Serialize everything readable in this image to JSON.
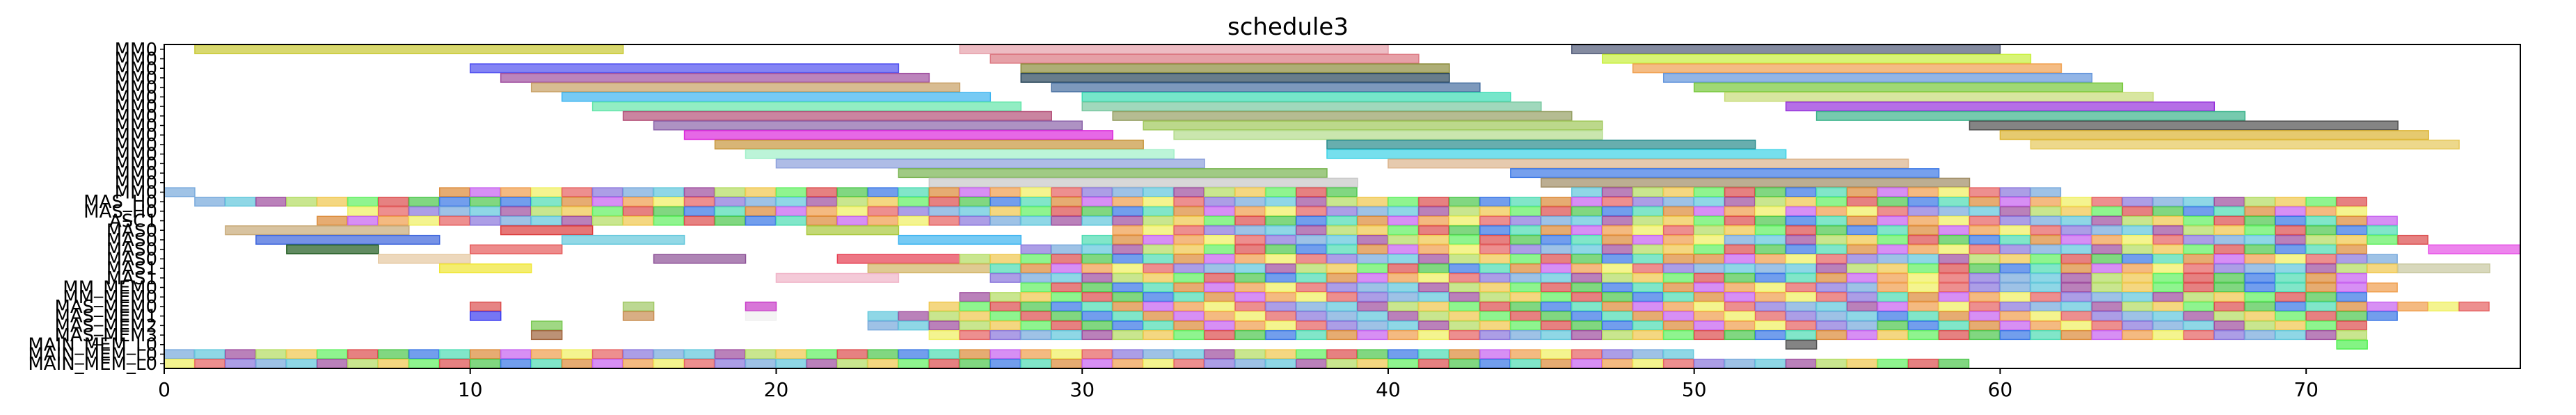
{
  "chart_data": {
    "type": "bar",
    "subtype": "gantt",
    "title": "schedule3",
    "xlabel": "",
    "ylabel": "",
    "xlim": [
      0,
      77
    ],
    "x_ticks": [
      0,
      10,
      20,
      30,
      40,
      50,
      60,
      70
    ],
    "grid": false,
    "legend": "none",
    "y_labels": [
      "MM0",
      "MM0",
      "MM0",
      "MM0",
      "MM0",
      "MM0",
      "MM0",
      "MM0",
      "MM0",
      "MM0",
      "MM0",
      "MM0",
      "MM0",
      "MM0",
      "MM0",
      "MM0",
      "MAS_H0",
      "MAS_H0",
      "ASC1",
      "MAS0",
      "MAS0",
      "MAS0",
      "MAS0",
      "MAS1",
      "MAS1",
      "MM_MEM0",
      "MM_MEM0",
      "MAS_MEM0",
      "MAS_MEM1",
      "MAS_MEM2",
      "MAS_MEM3",
      "MAIN_MEM_L0",
      "MAIN_MEM_L0",
      "MAIN_MEM_L0"
    ],
    "rows": [
      {
        "label": "MM0",
        "tasks": [
          {
            "start": 1,
            "end": 15,
            "color": "#c8c832"
          },
          {
            "start": 26,
            "end": 40,
            "color": "#e6a0aa"
          },
          {
            "start": 46,
            "end": 60,
            "color": "#505a78"
          }
        ]
      },
      {
        "label": "MM0",
        "tasks": [
          {
            "start": 27,
            "end": 41,
            "color": "#dc7882"
          },
          {
            "start": 47,
            "end": 61,
            "color": "#c8f03c"
          }
        ]
      },
      {
        "label": "MM0",
        "tasks": [
          {
            "start": 10,
            "end": 24,
            "color": "#5050f0"
          },
          {
            "start": 28,
            "end": 42,
            "color": "#8c8c3c"
          },
          {
            "start": 48,
            "end": 62,
            "color": "#f0a050"
          }
        ]
      },
      {
        "label": "MM0",
        "tasks": [
          {
            "start": 11,
            "end": 25,
            "color": "#a050a0"
          },
          {
            "start": 28,
            "end": 42,
            "color": "#28465a"
          },
          {
            "start": 49,
            "end": 63,
            "color": "#6496dc"
          }
        ]
      },
      {
        "label": "MM0",
        "tasks": [
          {
            "start": 12,
            "end": 26,
            "color": "#c8a064"
          },
          {
            "start": 29,
            "end": 43,
            "color": "#466ea0"
          },
          {
            "start": 50,
            "end": 64,
            "color": "#78c83c"
          }
        ]
      },
      {
        "label": "MM0",
        "tasks": [
          {
            "start": 13,
            "end": 27,
            "color": "#3cb4f0"
          },
          {
            "start": 30,
            "end": 44,
            "color": "#3cdcb4"
          },
          {
            "start": 51,
            "end": 65,
            "color": "#c8dc78"
          }
        ]
      },
      {
        "label": "MM0",
        "tasks": [
          {
            "start": 14,
            "end": 28,
            "color": "#64e6aa"
          },
          {
            "start": 30,
            "end": 45,
            "color": "#78c8a0"
          },
          {
            "start": 53,
            "end": 67,
            "color": "#9632dc"
          }
        ]
      },
      {
        "label": "MM0",
        "tasks": [
          {
            "start": 15,
            "end": 29,
            "color": "#b45078"
          },
          {
            "start": 31,
            "end": 46,
            "color": "#96a064"
          },
          {
            "start": 54,
            "end": 68,
            "color": "#3cb48c"
          }
        ]
      },
      {
        "label": "MM0",
        "tasks": [
          {
            "start": 16,
            "end": 30,
            "color": "#8c64aa"
          },
          {
            "start": 32,
            "end": 47,
            "color": "#a0c85a"
          },
          {
            "start": 59,
            "end": 73,
            "color": "#505050"
          }
        ]
      },
      {
        "label": "MM0",
        "tasks": [
          {
            "start": 17,
            "end": 31,
            "color": "#dc28dc"
          },
          {
            "start": 33,
            "end": 47,
            "color": "#b4dc8c"
          },
          {
            "start": 60,
            "end": 74,
            "color": "#dcb432"
          }
        ]
      },
      {
        "label": "MM0",
        "tasks": [
          {
            "start": 18,
            "end": 32,
            "color": "#c8963c"
          },
          {
            "start": 38,
            "end": 52,
            "color": "#288c8c"
          },
          {
            "start": 61,
            "end": 75,
            "color": "#e6c85a"
          }
        ]
      },
      {
        "label": "MM0",
        "tasks": [
          {
            "start": 19,
            "end": 33,
            "color": "#a0f0c8"
          },
          {
            "start": 38,
            "end": 53,
            "color": "#3cd2e6"
          }
        ]
      },
      {
        "label": "MM0",
        "tasks": [
          {
            "start": 20,
            "end": 34,
            "color": "#8ca0dc"
          },
          {
            "start": 40,
            "end": 57,
            "color": "#dcb48c"
          }
        ]
      },
      {
        "label": "MM0",
        "tasks": [
          {
            "start": 24,
            "end": 38,
            "color": "#78b450"
          },
          {
            "start": 44,
            "end": 58,
            "color": "#3c78e6"
          }
        ]
      },
      {
        "label": "MM0",
        "tasks": [
          {
            "start": 25,
            "end": 39,
            "color": "#c8c8c8"
          },
          {
            "start": 45,
            "end": 59,
            "color": "#a08c64"
          }
        ]
      },
      {
        "label": "MM0",
        "tasks": [
          {
            "start": 0,
            "end": 1,
            "color": "#78aadc"
          },
          {
            "start": 9,
            "end": 39,
            "color": "#dc5050",
            "pattern": true
          },
          {
            "start": 46,
            "end": 62,
            "color": "#8cb43c",
            "pattern": true
          }
        ]
      },
      {
        "label": "MAS_H0",
        "tasks": [
          {
            "start": 1,
            "end": 10,
            "color": "#c864f0",
            "pattern": true
          },
          {
            "start": 10,
            "end": 47,
            "color": "#f0f064",
            "pattern": true
          },
          {
            "start": 47,
            "end": 72,
            "color": "#64c8dc",
            "pattern": true
          }
        ]
      },
      {
        "label": "MAS_H0",
        "tasks": [
          {
            "start": 6,
            "end": 27,
            "color": "#64aaf0",
            "pattern": true
          },
          {
            "start": 27,
            "end": 53,
            "color": "#b4dc64",
            "pattern": true
          },
          {
            "start": 53,
            "end": 72,
            "color": "#f0f032",
            "pattern": true
          }
        ]
      },
      {
        "label": "ASC1",
        "tasks": [
          {
            "start": 5,
            "end": 30,
            "color": "#2850c8",
            "pattern": true
          },
          {
            "start": 30,
            "end": 53,
            "color": "#dc5064",
            "pattern": true
          },
          {
            "start": 53,
            "end": 73,
            "color": "#a050dc",
            "pattern": true
          }
        ]
      },
      {
        "label": "MAS0",
        "tasks": [
          {
            "start": 2,
            "end": 8,
            "color": "#c8aa78"
          },
          {
            "start": 11,
            "end": 14,
            "color": "#dc3c3c"
          },
          {
            "start": 21,
            "end": 24,
            "color": "#aac83c"
          },
          {
            "start": 31,
            "end": 50,
            "color": "#50aa50",
            "pattern": true
          },
          {
            "start": 50,
            "end": 73,
            "color": "#c864f0",
            "pattern": true
          }
        ]
      },
      {
        "label": "MAS0",
        "tasks": [
          {
            "start": 3,
            "end": 9,
            "color": "#3c64dc"
          },
          {
            "start": 13,
            "end": 17,
            "color": "#64c8dc"
          },
          {
            "start": 24,
            "end": 28,
            "color": "#3cb4f0"
          },
          {
            "start": 30,
            "end": 51,
            "color": "#f0a03c",
            "pattern": true
          },
          {
            "start": 51,
            "end": 74,
            "color": "#50dc8c",
            "pattern": true
          }
        ]
      },
      {
        "label": "MAS0",
        "tasks": [
          {
            "start": 4,
            "end": 7,
            "color": "#1e5a1e"
          },
          {
            "start": 10,
            "end": 13,
            "color": "#e65a5a"
          },
          {
            "start": 28,
            "end": 51,
            "color": "#a03c50",
            "pattern": true
          },
          {
            "start": 51,
            "end": 72,
            "color": "#3c9650",
            "pattern": true
          },
          {
            "start": 74,
            "end": 77,
            "color": "#e650e6"
          }
        ]
      },
      {
        "label": "MAS0",
        "tasks": [
          {
            "start": 7,
            "end": 10,
            "color": "#e6c8a0"
          },
          {
            "start": 16,
            "end": 19,
            "color": "#8c5096"
          },
          {
            "start": 22,
            "end": 26,
            "color": "#e63c50"
          },
          {
            "start": 26,
            "end": 50,
            "color": "#dcdc78",
            "pattern": true
          },
          {
            "start": 50,
            "end": 73,
            "color": "#5032a0",
            "pattern": true
          }
        ]
      },
      {
        "label": "MAS1",
        "tasks": [
          {
            "start": 9,
            "end": 12,
            "color": "#f0e632"
          },
          {
            "start": 23,
            "end": 27,
            "color": "#d2b464"
          },
          {
            "start": 27,
            "end": 52,
            "color": "#28e6a0",
            "pattern": true
          },
          {
            "start": 52,
            "end": 73,
            "color": "#506ef0",
            "pattern": true
          },
          {
            "start": 73,
            "end": 76,
            "color": "#c8c8a0"
          }
        ]
      },
      {
        "label": "MAS1",
        "tasks": [
          {
            "start": 20,
            "end": 24,
            "color": "#f0b4c8"
          },
          {
            "start": 27,
            "end": 50,
            "color": "#b4e6b4",
            "pattern": true
          },
          {
            "start": 50,
            "end": 72,
            "color": "#e6643c",
            "pattern": true
          }
        ]
      },
      {
        "label": "MM_MEM0",
        "tasks": [
          {
            "start": 28,
            "end": 56,
            "color": "#969696",
            "pattern": true
          },
          {
            "start": 56,
            "end": 73,
            "color": "#50b4c8",
            "pattern": true
          }
        ]
      },
      {
        "label": "MM_MEM0",
        "tasks": [
          {
            "start": 26,
            "end": 56,
            "color": "#f0c850",
            "pattern": true
          },
          {
            "start": 56,
            "end": 72,
            "color": "#78dc96",
            "pattern": true
          }
        ]
      },
      {
        "label": "MAS_MEM0",
        "tasks": [
          {
            "start": 10,
            "end": 11,
            "color": "#dc5050"
          },
          {
            "start": 15,
            "end": 16,
            "color": "#a0c864"
          },
          {
            "start": 19,
            "end": 20,
            "color": "#c83cc8"
          },
          {
            "start": 25,
            "end": 56,
            "color": "#50dcb4",
            "pattern": true
          },
          {
            "start": 56,
            "end": 76,
            "color": "#c8783c",
            "pattern": true
          }
        ]
      },
      {
        "label": "MAS_MEM1",
        "tasks": [
          {
            "start": 10,
            "end": 11,
            "color": "#3c3cf0"
          },
          {
            "start": 15,
            "end": 16,
            "color": "#c88c50"
          },
          {
            "start": 19,
            "end": 20,
            "color": "#f0f0f0"
          },
          {
            "start": 23,
            "end": 56,
            "color": "#78a03c",
            "pattern": true
          },
          {
            "start": 56,
            "end": 73,
            "color": "#dc64a0",
            "pattern": true
          }
        ]
      },
      {
        "label": "MAS_MEM2",
        "tasks": [
          {
            "start": 12,
            "end": 13,
            "color": "#78c850"
          },
          {
            "start": 23,
            "end": 56,
            "color": "#aaaa3c",
            "pattern": true
          },
          {
            "start": 56,
            "end": 72,
            "color": "#3ca0dc",
            "pattern": true
          }
        ]
      },
      {
        "label": "MAS_MEM3",
        "tasks": [
          {
            "start": 12,
            "end": 13,
            "color": "#a0643c"
          },
          {
            "start": 25,
            "end": 56,
            "color": "#dc50dc",
            "pattern": true
          },
          {
            "start": 56,
            "end": 72,
            "color": "#64f064",
            "pattern": true
          }
        ]
      },
      {
        "label": "MAIN_MEM_L0",
        "tasks": [
          {
            "start": 53,
            "end": 54,
            "color": "#505050"
          },
          {
            "start": 71,
            "end": 72,
            "color": "#50f050"
          }
        ]
      },
      {
        "label": "MAIN_MEM_L0",
        "tasks": [
          {
            "start": 0,
            "end": 50,
            "color": "#8c78dc",
            "pattern": true
          }
        ]
      },
      {
        "label": "MAIN_MEM_L0",
        "tasks": [
          {
            "start": 0,
            "end": 59,
            "color": "#dc8c3c",
            "pattern": true
          }
        ]
      }
    ]
  }
}
